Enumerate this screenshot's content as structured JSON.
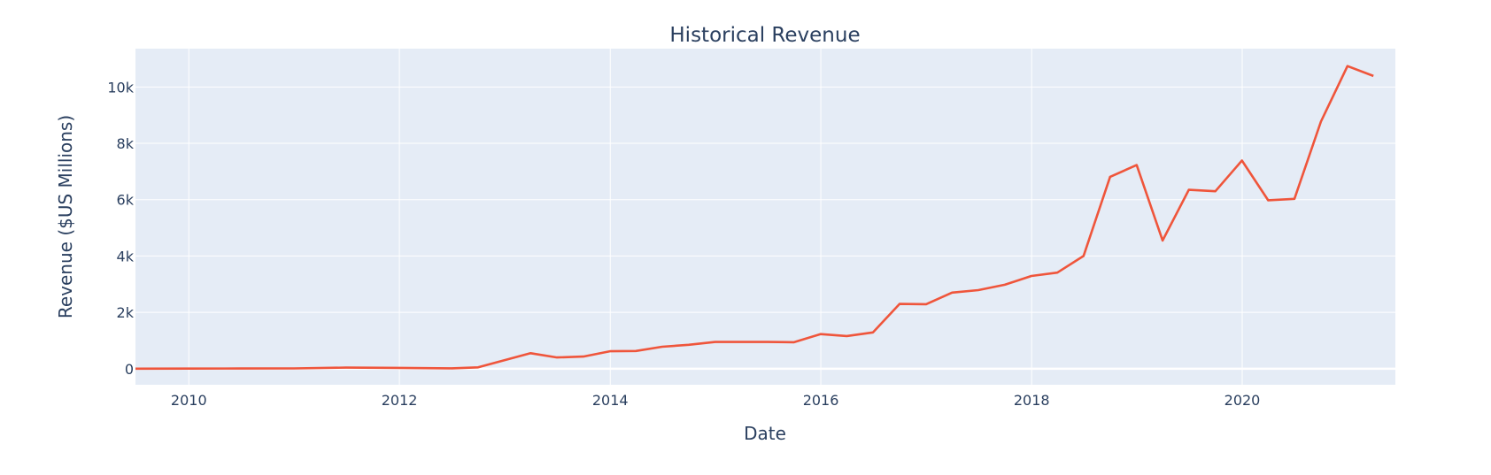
{
  "chart_data": {
    "type": "line",
    "title": "Historical Revenue",
    "xlabel": "Date",
    "ylabel": "Revenue ($US Millions)",
    "x_ticks": [
      "2010",
      "2012",
      "2014",
      "2016",
      "2018",
      "2020"
    ],
    "y_ticks": [
      {
        "value": 0,
        "label": "0"
      },
      {
        "value": 2000,
        "label": "2k"
      },
      {
        "value": 4000,
        "label": "4k"
      },
      {
        "value": 6000,
        "label": "6k"
      },
      {
        "value": 8000,
        "label": "8k"
      },
      {
        "value": 10000,
        "label": "10k"
      }
    ],
    "xlim": [
      "2009-06-30",
      "2021-06-15"
    ],
    "ylim": [
      -570,
      11360
    ],
    "grid": true,
    "line_color": "#ef553b",
    "plot_bg": "#e5ecf6",
    "series": [
      {
        "x": [
          "2009-06-30",
          "2009-12-31",
          "2010-06-30",
          "2010-12-31",
          "2011-06-30",
          "2011-12-31",
          "2012-06-30",
          "2012-09-30",
          "2013-03-31",
          "2013-06-30",
          "2013-09-30",
          "2013-12-31",
          "2014-03-31",
          "2014-06-30",
          "2014-09-30",
          "2014-12-31",
          "2015-06-30",
          "2015-09-30",
          "2015-12-31",
          "2016-03-31",
          "2016-06-30",
          "2016-09-30",
          "2016-12-31",
          "2017-03-31",
          "2017-06-30",
          "2017-09-30",
          "2017-12-31",
          "2018-03-31",
          "2018-06-30",
          "2018-09-30",
          "2018-12-31",
          "2019-03-31",
          "2019-06-30",
          "2019-09-30",
          "2019-12-31",
          "2020-03-31",
          "2020-06-30",
          "2020-09-30",
          "2020-12-31",
          "2021-03-31"
        ],
        "y": [
          0,
          5,
          8,
          10,
          40,
          30,
          15,
          50,
          550,
          400,
          430,
          620,
          630,
          780,
          850,
          950,
          950,
          940,
          1230,
          1160,
          1290,
          2300,
          2290,
          2700,
          2790,
          2980,
          3290,
          3410,
          4000,
          6810,
          7230,
          4550,
          6350,
          6300,
          7390,
          5980,
          6030,
          8770,
          10740,
          10390
        ]
      }
    ]
  }
}
